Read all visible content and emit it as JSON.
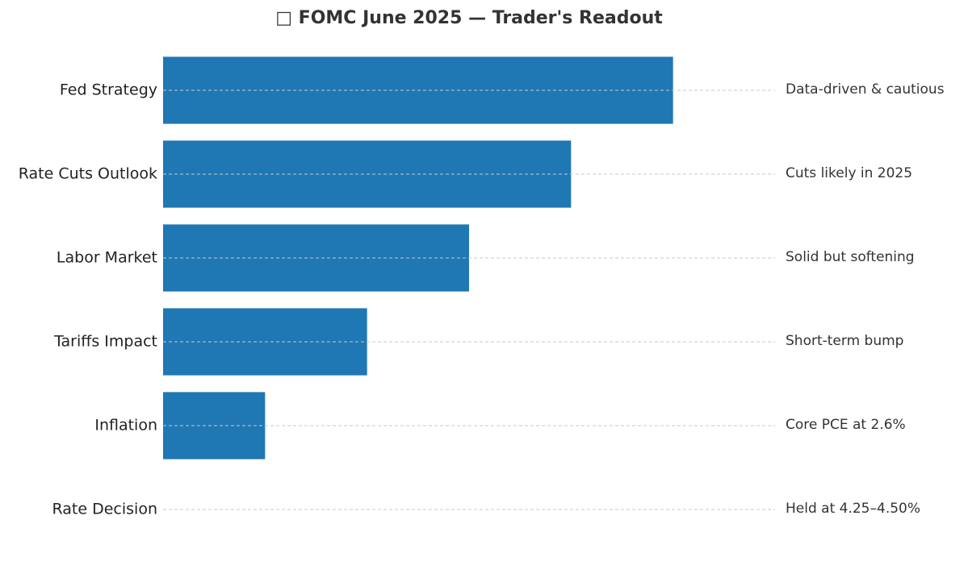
{
  "chart_data": {
    "type": "barh",
    "title": "□ FOMC June 2025 — Trader's Readout",
    "categories": [
      "Fed Strategy",
      "Rate Cuts Outlook",
      "Labor Market",
      "Tariffs Impact",
      "Inflation",
      "Rate Decision"
    ],
    "values": [
      5,
      4,
      3,
      2,
      1,
      0
    ],
    "annotations": [
      "Data-driven & cautious",
      "Cuts likely in 2025",
      "Solid but softening",
      "Short-term bump",
      "Core PCE at 2.6%",
      "Held at 4.25–4.50%"
    ],
    "color": "#1f77b4",
    "xlim": [
      0,
      6
    ],
    "grid": true
  }
}
